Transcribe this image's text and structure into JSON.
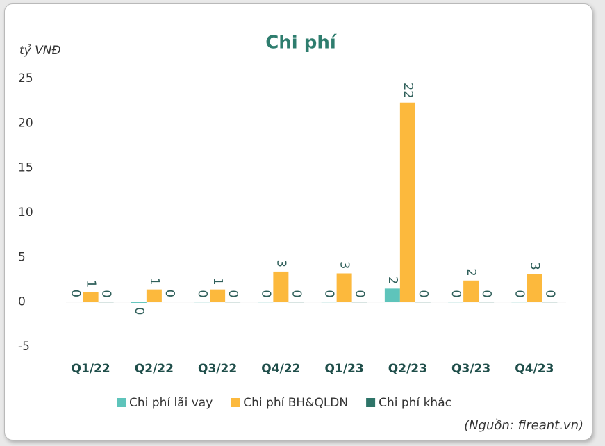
{
  "chart_data": {
    "type": "bar",
    "title": "Chi phí",
    "y_label": "tỷ VNĐ",
    "source": "(Nguồn: fireant.vn)",
    "categories": [
      "Q1/22",
      "Q2/22",
      "Q3/22",
      "Q4/22",
      "Q1/23",
      "Q2/23",
      "Q3/23",
      "Q4/23"
    ],
    "series": [
      {
        "name": "Chi phí lãi vay",
        "color": "#5ec4bb",
        "values": [
          0.05,
          -0.1,
          0,
          0,
          0,
          1.5,
          0,
          0
        ],
        "value_labels": [
          "0",
          "0",
          "0",
          "0",
          "0",
          "2",
          "0",
          "0"
        ]
      },
      {
        "name": "Chi phí BH&QLDN",
        "color": "#fcb93d",
        "values": [
          1.1,
          1.4,
          1.4,
          3.4,
          3.2,
          22.3,
          2.4,
          3.1
        ],
        "value_labels": [
          "1",
          "1",
          "1",
          "3",
          "3",
          "22",
          "2",
          "3"
        ]
      },
      {
        "name": "Chi phí khác",
        "color": "#2e7468",
        "values": [
          0,
          0.05,
          0,
          0,
          0,
          0,
          0,
          0
        ],
        "value_labels": [
          "0",
          "0",
          "0",
          "0",
          "0",
          "0",
          "0",
          "0"
        ]
      }
    ],
    "ylim": [
      -5,
      25
    ],
    "yticks": [
      -5,
      0,
      5,
      10,
      15,
      20,
      25
    ],
    "grid": false
  }
}
